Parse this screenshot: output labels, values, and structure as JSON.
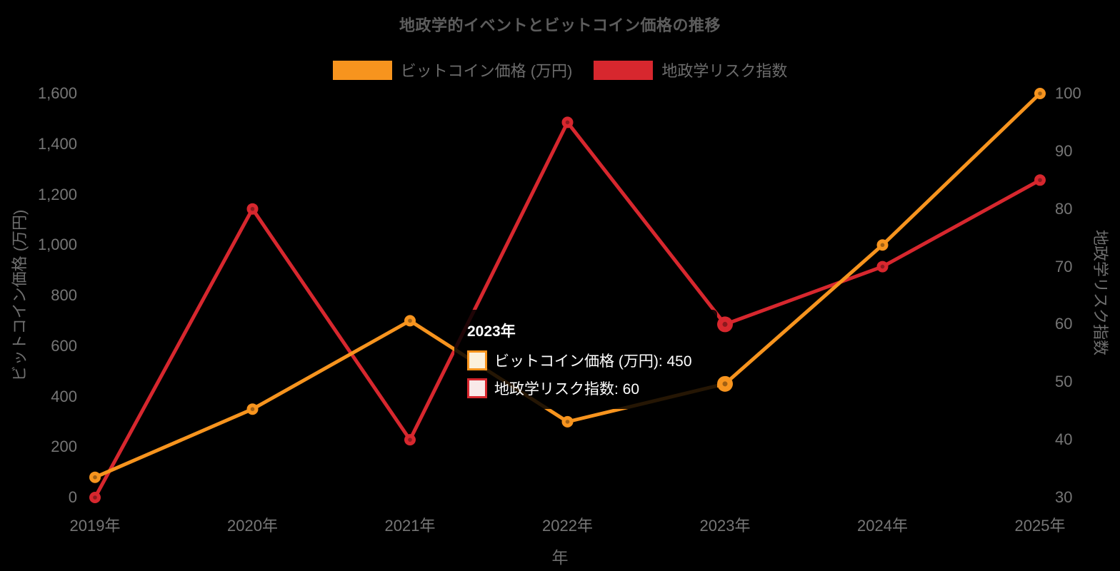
{
  "chart_data": {
    "type": "line",
    "title": "地政学的イベントとビットコイン価格の推移",
    "x": [
      "2019年",
      "2020年",
      "2021年",
      "2022年",
      "2023年",
      "2024年",
      "2025年"
    ],
    "xlabel": "年",
    "grid": false,
    "legend_position": "top",
    "background_color": "#000000",
    "series": [
      {
        "name": "ビットコイン価格 (万円)",
        "color": "#F7941E",
        "axis": "left",
        "values": [
          80,
          350,
          700,
          300,
          450,
          1000,
          1600
        ]
      },
      {
        "name": "地政学リスク指数",
        "color": "#D7272E",
        "axis": "right",
        "values": [
          30,
          80,
          40,
          95,
          60,
          70,
          85
        ]
      }
    ],
    "left_axis": {
      "label": "ビットコイン価格 (万円)",
      "min": 0,
      "max": 1600,
      "tick_values": [
        0,
        200,
        400,
        600,
        800,
        1000,
        1200,
        1400,
        1600
      ],
      "tick_labels": [
        "0",
        "200",
        "400",
        "600",
        "800",
        "1,000",
        "1,200",
        "1,400",
        "1,600"
      ]
    },
    "right_axis": {
      "label": "地政学リスク指数",
      "min": 30,
      "max": 100,
      "tick_values": [
        30,
        40,
        50,
        60,
        70,
        80,
        90,
        100
      ],
      "tick_labels": [
        "30",
        "40",
        "50",
        "60",
        "70",
        "80",
        "90",
        "100"
      ]
    },
    "active_point_index": 4
  },
  "tooltip": {
    "title": "2023年",
    "rows": [
      {
        "series": "ビットコイン価格 (万円)",
        "value": 450,
        "text": "ビットコイン価格 (万円): 450",
        "swatch_style": "background:#FBF0DC;border-color:#F7941E;"
      },
      {
        "series": "地政学リスク指数",
        "value": 60,
        "text": "地政学リスク指数: 60",
        "swatch_style": "background:#F9E9E9;border-color:#D7272E;"
      }
    ]
  }
}
